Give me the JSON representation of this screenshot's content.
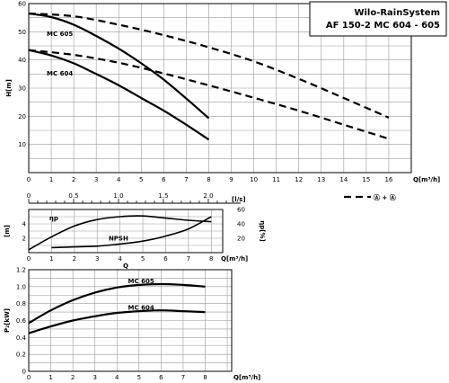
{
  "title_box": {
    "line1": "Wilo-RainSystem",
    "line2": "AF 150-2 MC 604 - 605"
  },
  "chart_data": [
    {
      "type": "line",
      "name": "head",
      "ylabel": "H[m]",
      "xlabel": "Q[m³/h]",
      "xlim": [
        0,
        17
      ],
      "ylim": [
        0,
        60
      ],
      "x_ticks": [
        "0",
        "1",
        "2",
        "3",
        "4",
        "5",
        "6",
        "7",
        "8",
        "9",
        "10",
        "11",
        "12",
        "13",
        "14",
        "15",
        "16"
      ],
      "y_ticks": [
        "10",
        "20",
        "30",
        "40",
        "50",
        "60"
      ],
      "series": [
        {
          "name": "MC 605",
          "style": "solid",
          "x": [
            0,
            1,
            2,
            3,
            4,
            5,
            6,
            7,
            8
          ],
          "y": [
            56.5,
            55.2,
            52.5,
            48.5,
            44,
            38.8,
            33,
            26.3,
            19.3
          ]
        },
        {
          "name": "MC 604",
          "style": "solid",
          "x": [
            0,
            1,
            2,
            3,
            4,
            5,
            6,
            7,
            8
          ],
          "y": [
            43.5,
            41.6,
            38.8,
            35,
            31,
            26.5,
            22,
            17,
            11.7
          ]
        },
        {
          "name": "",
          "style": "dashed",
          "x": [
            0,
            2,
            4,
            6,
            8,
            10,
            12,
            14,
            16
          ],
          "y": [
            56.5,
            55.5,
            52.5,
            48.8,
            44.5,
            39.5,
            33.3,
            26.5,
            19.5
          ]
        },
        {
          "name": "",
          "style": "dashed",
          "x": [
            0,
            2,
            4,
            6,
            8,
            10,
            12,
            14,
            16
          ],
          "y": [
            43.5,
            41.8,
            39,
            35.2,
            31,
            26.6,
            22,
            17,
            12
          ]
        }
      ],
      "labels": [
        "MC 605",
        "MC 604"
      ],
      "legend_text": "Ⓐ + Ⓐ"
    },
    {
      "type": "line",
      "name": "secondary-axis",
      "xlabel": "[l/s]",
      "x_ticks": [
        "0",
        "0.5",
        "1.0",
        "1.5",
        "2.0"
      ],
      "xlim": [
        0,
        2.36
      ]
    },
    {
      "type": "line",
      "name": "efficiency-npsh",
      "ylabel_left": "[m]",
      "ylabel_right": "ηp[%]",
      "xlabel": "Q[m³/h]",
      "xlim": [
        0,
        8.5
      ],
      "ylim_left": [
        0,
        6
      ],
      "ylim_right": [
        0,
        60
      ],
      "x_ticks": [
        "0",
        "1",
        "2",
        "3",
        "4",
        "5",
        "6",
        "7",
        "8"
      ],
      "y_ticks_left": [
        "2",
        "4"
      ],
      "y_ticks_right": [
        "20",
        "40",
        "60"
      ],
      "series": [
        {
          "name": "ηp",
          "axis": "right",
          "x": [
            0,
            1,
            2,
            3,
            4,
            5,
            6,
            7,
            8
          ],
          "y": [
            4,
            22,
            37,
            46,
            50,
            51,
            48,
            45,
            43
          ]
        },
        {
          "name": "NPSH",
          "axis": "left",
          "x": [
            1,
            2,
            3,
            4,
            5,
            6,
            7,
            8
          ],
          "y": [
            0.7,
            0.8,
            0.9,
            1.2,
            1.6,
            2.3,
            3.3,
            5.0
          ]
        }
      ],
      "bottom_label": "Q"
    },
    {
      "type": "line",
      "name": "power",
      "ylabel": "P₂[kW]",
      "xlabel": "Q[m³/h]",
      "xlim": [
        0,
        9.2
      ],
      "ylim": [
        0,
        1.2
      ],
      "x_ticks": [
        "0",
        "1",
        "2",
        "3",
        "4",
        "5",
        "6",
        "7",
        "8"
      ],
      "y_ticks": [
        "0",
        "0.2",
        "0.4",
        "0.6",
        "0.8",
        "1.0",
        "1.2"
      ],
      "series": [
        {
          "name": "MC 605",
          "x": [
            0,
            1,
            2,
            3,
            4,
            5,
            6,
            7,
            8
          ],
          "y": [
            0.57,
            0.72,
            0.84,
            0.93,
            0.99,
            1.02,
            1.03,
            1.02,
            1.0
          ]
        },
        {
          "name": "MC 604",
          "x": [
            0,
            1,
            2,
            3,
            4,
            5,
            6,
            7,
            8
          ],
          "y": [
            0.45,
            0.53,
            0.6,
            0.65,
            0.69,
            0.71,
            0.72,
            0.71,
            0.7
          ]
        }
      ]
    }
  ]
}
